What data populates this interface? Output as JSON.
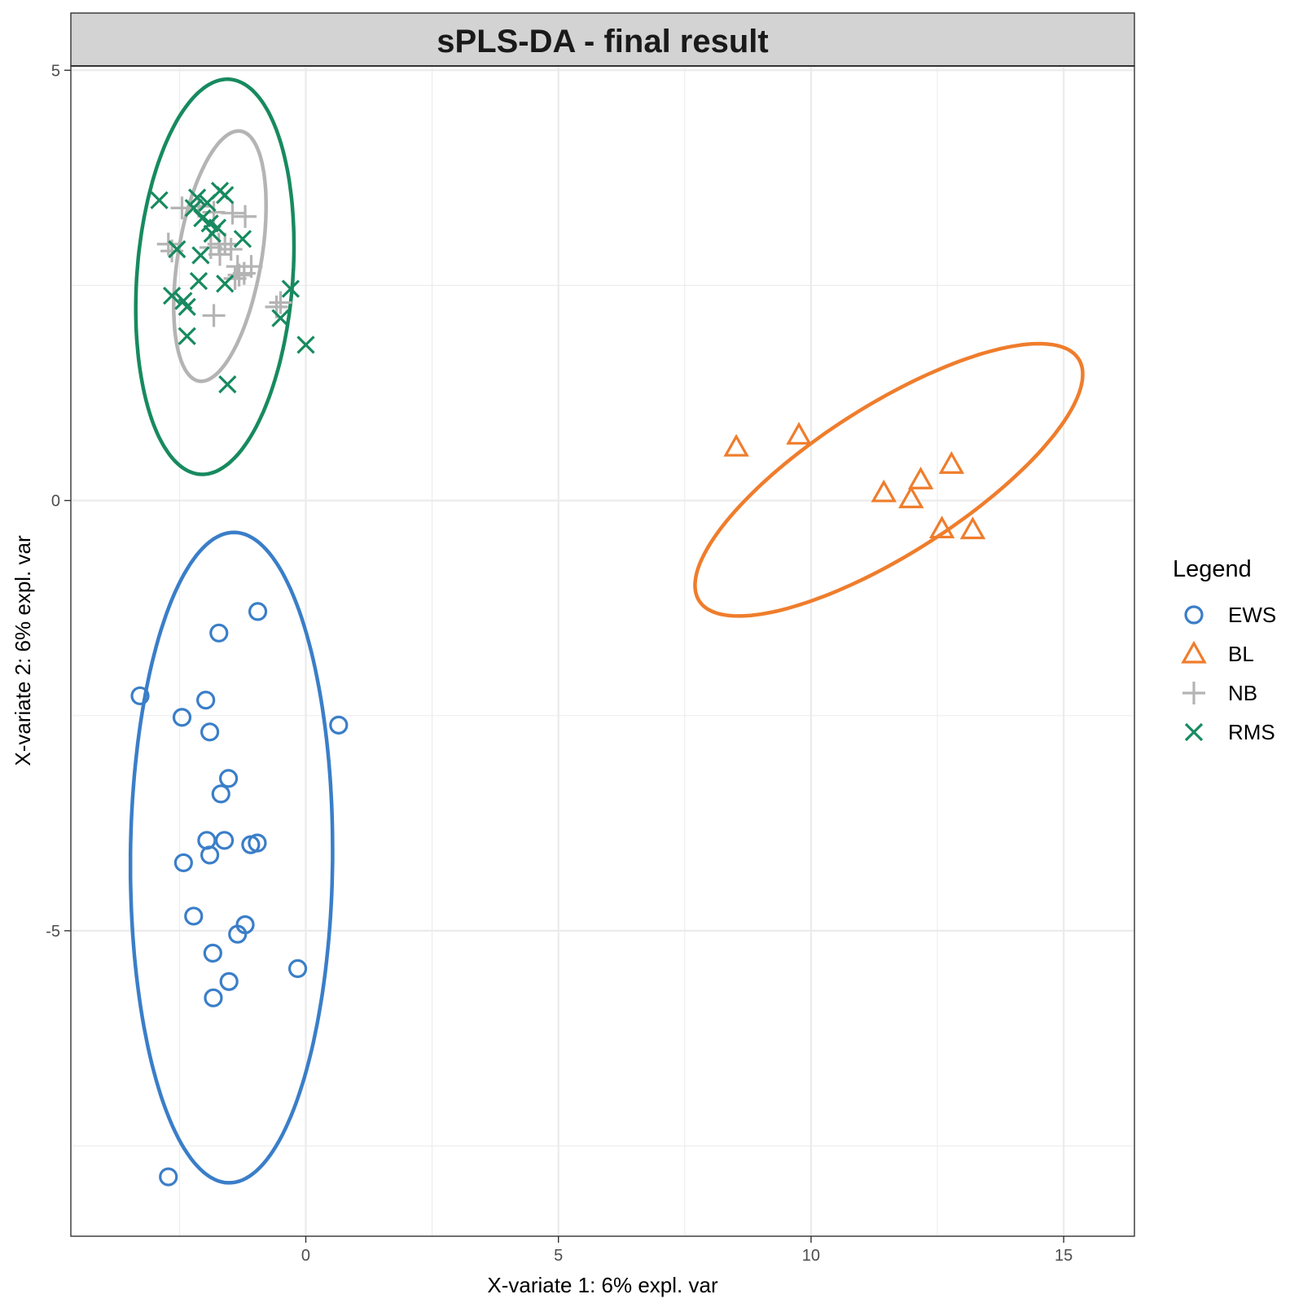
{
  "chart_data": {
    "type": "scatter",
    "title": "sPLS-DA - final result",
    "xlabel": "X-variate 1: 6% expl. var",
    "ylabel": "X-variate 2: 6% expl. var",
    "xlim": [
      -4.65,
      16.4
    ],
    "ylim": [
      -8.55,
      5.05
    ],
    "x_ticks": [
      0,
      5,
      10,
      15
    ],
    "y_ticks": [
      -5,
      0,
      5
    ],
    "grid": true,
    "legend": {
      "title": "Legend",
      "position": "right",
      "entries": [
        {
          "label": "EWS",
          "shape": "circle",
          "color": "#3A7EC8"
        },
        {
          "label": "BL",
          "shape": "triangle",
          "color": "#EF7D2C"
        },
        {
          "label": "NB",
          "shape": "plus",
          "color": "#B4B4B4"
        },
        {
          "label": "RMS",
          "shape": "cross",
          "color": "#178A5F"
        }
      ]
    },
    "series": [
      {
        "name": "EWS",
        "shape": "circle",
        "color": "#3A7EC8",
        "points": [
          [
            -0.95,
            -1.29
          ],
          [
            -1.72,
            -1.54
          ],
          [
            -3.28,
            -2.27
          ],
          [
            -1.98,
            -2.32
          ],
          [
            -2.45,
            -2.52
          ],
          [
            0.65,
            -2.61
          ],
          [
            -1.9,
            -2.69
          ],
          [
            -1.53,
            -3.23
          ],
          [
            -1.68,
            -3.41
          ],
          [
            -1.96,
            -3.95
          ],
          [
            -1.61,
            -3.95
          ],
          [
            -1.9,
            -4.12
          ],
          [
            -1.09,
            -4.0
          ],
          [
            -0.96,
            -3.98
          ],
          [
            -2.42,
            -4.21
          ],
          [
            -2.22,
            -4.83
          ],
          [
            -1.2,
            -4.93
          ],
          [
            -1.35,
            -5.04
          ],
          [
            -1.84,
            -5.26
          ],
          [
            -0.16,
            -5.44
          ],
          [
            -1.52,
            -5.59
          ],
          [
            -1.83,
            -5.78
          ],
          [
            -2.72,
            -7.86
          ]
        ]
      },
      {
        "name": "BL",
        "shape": "triangle",
        "color": "#EF7D2C",
        "points": [
          [
            8.52,
            0.62
          ],
          [
            9.76,
            0.76
          ],
          [
            11.44,
            0.09
          ],
          [
            12.17,
            0.24
          ],
          [
            12.78,
            0.42
          ],
          [
            11.98,
            0.02
          ],
          [
            12.59,
            -0.33
          ],
          [
            13.2,
            -0.34
          ]
        ]
      },
      {
        "name": "NB",
        "shape": "plus",
        "color": "#B4B4B4",
        "points": [
          [
            -2.45,
            3.4
          ],
          [
            -2.12,
            3.42
          ],
          [
            -1.82,
            3.35
          ],
          [
            -1.45,
            3.34
          ],
          [
            -1.2,
            3.3
          ],
          [
            -2.65,
            2.9
          ],
          [
            -2.72,
            2.98
          ],
          [
            -1.72,
            2.98
          ],
          [
            -1.88,
            2.94
          ],
          [
            -1.6,
            2.98
          ],
          [
            -1.48,
            2.92
          ],
          [
            -1.7,
            2.86
          ],
          [
            -1.35,
            2.72
          ],
          [
            -1.22,
            2.64
          ],
          [
            -1.4,
            2.58
          ],
          [
            -1.08,
            2.72
          ],
          [
            -1.32,
            2.62
          ],
          [
            -0.58,
            2.25
          ],
          [
            -1.82,
            2.15
          ],
          [
            -0.5,
            2.3
          ]
        ]
      },
      {
        "name": "RMS",
        "shape": "cross",
        "color": "#178A5F",
        "points": [
          [
            -2.9,
            3.49
          ],
          [
            -2.15,
            3.52
          ],
          [
            -1.95,
            3.46
          ],
          [
            -1.7,
            3.6
          ],
          [
            -1.6,
            3.55
          ],
          [
            -2.22,
            3.4
          ],
          [
            -2.05,
            3.28
          ],
          [
            -1.9,
            3.22
          ],
          [
            -1.75,
            3.17
          ],
          [
            -1.85,
            3.1
          ],
          [
            -2.55,
            2.92
          ],
          [
            -2.08,
            2.85
          ],
          [
            -1.25,
            3.04
          ],
          [
            -2.12,
            2.55
          ],
          [
            -1.6,
            2.52
          ],
          [
            -2.65,
            2.38
          ],
          [
            -2.42,
            2.32
          ],
          [
            -2.35,
            2.25
          ],
          [
            -0.3,
            2.46
          ],
          [
            -0.5,
            2.12
          ],
          [
            -2.35,
            1.91
          ],
          [
            0.0,
            1.81
          ],
          [
            -1.55,
            1.35
          ]
        ]
      }
    ],
    "ellipses": [
      {
        "name": "EWS",
        "color": "#3A7EC8",
        "cx": -1.47,
        "cy": -4.15,
        "rx": 2.0,
        "ry": 3.78,
        "angle_deg": -1
      },
      {
        "name": "BL",
        "color": "#EF7D2C",
        "cx": 11.54,
        "cy": 0.24,
        "rx": 4.04,
        "ry": 0.95,
        "angle_deg": 18.8
      },
      {
        "name": "NB",
        "color": "#B4B4B4",
        "cx": -1.7,
        "cy": 2.84,
        "rx": 0.8,
        "ry": 1.52,
        "angle_deg": -20
      },
      {
        "name": "RMS",
        "color": "#178A5F",
        "cx": -1.8,
        "cy": 2.6,
        "rx": 1.53,
        "ry": 2.32,
        "angle_deg": -11
      }
    ]
  }
}
